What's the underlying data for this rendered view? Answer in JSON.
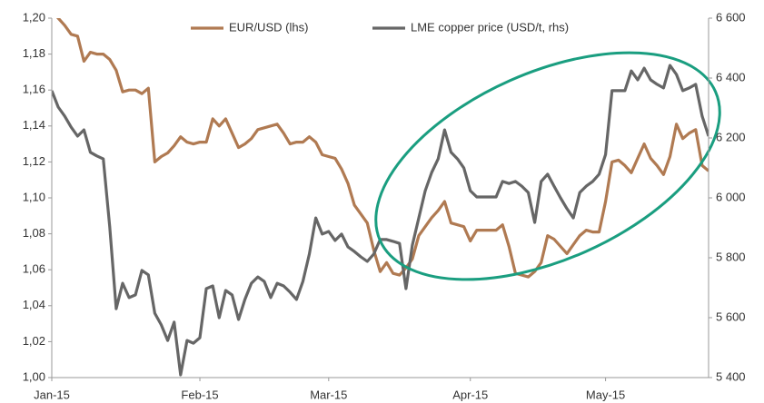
{
  "chart_data": {
    "type": "line",
    "categories": [
      "Jan-15",
      null,
      null,
      null,
      null,
      null,
      null,
      null,
      null,
      null,
      null,
      null,
      null,
      null,
      null,
      null,
      null,
      null,
      null,
      null,
      null,
      null,
      null,
      "Feb-15",
      null,
      null,
      null,
      null,
      null,
      null,
      null,
      null,
      null,
      null,
      null,
      null,
      null,
      null,
      null,
      null,
      null,
      null,
      null,
      "Mar-15",
      null,
      null,
      null,
      null,
      null,
      null,
      null,
      null,
      null,
      null,
      null,
      null,
      null,
      null,
      null,
      null,
      null,
      null,
      null,
      null,
      null,
      "Apr-15",
      null,
      null,
      null,
      null,
      null,
      null,
      null,
      null,
      null,
      null,
      null,
      null,
      null,
      null,
      null,
      null,
      null,
      null,
      null,
      null,
      "May-15",
      null,
      null,
      null,
      null,
      null,
      null,
      null,
      null,
      null,
      null,
      null,
      null,
      null,
      null,
      null,
      null
    ],
    "series": [
      {
        "name": "EUR/USD (lhs)",
        "color": "#b07a52",
        "axis": "y",
        "values": [
          1.204,
          1.2,
          1.196,
          1.191,
          1.19,
          1.176,
          1.181,
          1.18,
          1.18,
          1.177,
          1.171,
          1.159,
          1.16,
          1.16,
          1.158,
          1.161,
          1.12,
          1.123,
          1.125,
          1.129,
          1.134,
          1.131,
          1.13,
          1.131,
          1.131,
          1.144,
          1.14,
          1.144,
          1.136,
          1.128,
          1.13,
          1.133,
          1.138,
          1.139,
          1.14,
          1.141,
          1.136,
          1.13,
          1.131,
          1.131,
          1.134,
          1.131,
          1.124,
          1.123,
          1.122,
          1.116,
          1.108,
          1.096,
          1.091,
          1.086,
          1.071,
          1.059,
          1.064,
          1.058,
          1.057,
          1.061,
          1.066,
          1.079,
          1.084,
          1.089,
          1.093,
          1.098,
          1.086,
          1.085,
          1.084,
          1.076,
          1.082,
          1.082,
          1.082,
          1.082,
          1.085,
          1.073,
          1.058,
          1.057,
          1.056,
          1.059,
          1.064,
          1.079,
          1.077,
          1.073,
          1.069,
          1.074,
          1.079,
          1.082,
          1.081,
          1.081,
          1.098,
          1.12,
          1.121,
          1.118,
          1.114,
          1.122,
          1.13,
          1.122,
          1.118,
          1.113,
          1.123,
          1.141,
          1.133,
          1.136,
          1.138,
          1.118,
          1.115
        ]
      },
      {
        "name": "LME copper price (USD/t, rhs)",
        "color": "#666666",
        "axis": "y2",
        "values": [
          6358,
          6303,
          6273,
          6236,
          6206,
          6227,
          6152,
          6140,
          6130,
          5903,
          5630,
          5715,
          5667,
          5676,
          5758,
          5743,
          5615,
          5576,
          5524,
          5585,
          5409,
          5524,
          5515,
          5533,
          5697,
          5706,
          5600,
          5691,
          5676,
          5594,
          5661,
          5715,
          5736,
          5721,
          5667,
          5715,
          5706,
          5685,
          5661,
          5721,
          5812,
          5933,
          5879,
          5888,
          5858,
          5879,
          5836,
          5821,
          5803,
          5788,
          5812,
          5861,
          5861,
          5855,
          5848,
          5697,
          5842,
          5933,
          6024,
          6085,
          6130,
          6227,
          6152,
          6130,
          6100,
          6024,
          6003,
          6003,
          6003,
          6003,
          6055,
          6048,
          6055,
          6039,
          6018,
          5918,
          6055,
          6079,
          6039,
          6000,
          5964,
          5933,
          6018,
          6039,
          6055,
          6079,
          6145,
          6358,
          6358,
          6358,
          6424,
          6394,
          6433,
          6394,
          6379,
          6367,
          6442,
          6412,
          6358,
          6367,
          6379,
          6273,
          6206
        ]
      }
    ],
    "ylim": [
      1.0,
      1.2
    ],
    "yticks": [
      {
        "value": 1.0,
        "label": "1,00"
      },
      {
        "value": 1.02,
        "label": "1,02"
      },
      {
        "value": 1.04,
        "label": "1,04"
      },
      {
        "value": 1.06,
        "label": "1,06"
      },
      {
        "value": 1.08,
        "label": "1,08"
      },
      {
        "value": 1.1,
        "label": "1,10"
      },
      {
        "value": 1.12,
        "label": "1,12"
      },
      {
        "value": 1.14,
        "label": "1,14"
      },
      {
        "value": 1.16,
        "label": "1,16"
      },
      {
        "value": 1.18,
        "label": "1,18"
      },
      {
        "value": 1.2,
        "label": "1,20"
      }
    ],
    "y2lim": [
      5400,
      6600
    ],
    "y2ticks": [
      {
        "value": 5400,
        "label": "5 400"
      },
      {
        "value": 5600,
        "label": "5 600"
      },
      {
        "value": 5800,
        "label": "5 800"
      },
      {
        "value": 6000,
        "label": "6 000"
      },
      {
        "value": 6200,
        "label": "6 200"
      },
      {
        "value": 6400,
        "label": "6 400"
      },
      {
        "value": 6600,
        "label": "6 600"
      }
    ],
    "grid": false,
    "legend": "top"
  }
}
